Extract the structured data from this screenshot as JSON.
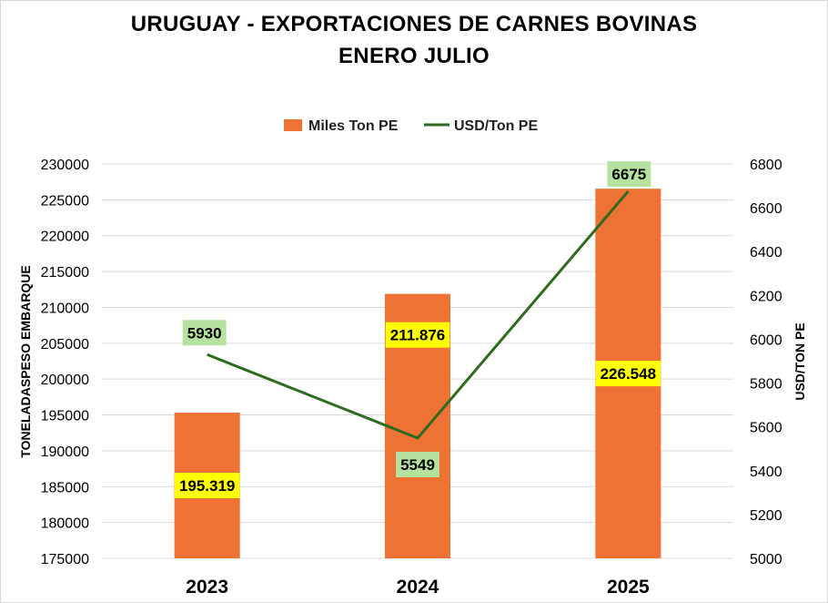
{
  "title_line1": "URUGUAY - EXPORTACIONES DE CARNES BOVINAS",
  "title_line2": "ENERO JULIO",
  "colors": {
    "bar": "#ED7233",
    "line": "#2E6B1F",
    "bar_label_bg": "#FFFF00",
    "line_label_bg": "#B5E29E",
    "grid": "#D9D9D9"
  },
  "chart_data": {
    "type": "bar",
    "title": "URUGUAY - EXPORTACIONES DE CARNES BOVINAS ENERO JULIO",
    "categories": [
      "2023",
      "2024",
      "2025"
    ],
    "series": [
      {
        "name": "Miles Ton PE",
        "type": "bar",
        "axis": "left",
        "values": [
          195319,
          211876,
          226548
        ],
        "labels": [
          "195.319",
          "211.876",
          "226.548"
        ]
      },
      {
        "name": "USD/Ton PE",
        "type": "line",
        "axis": "right",
        "values": [
          5930,
          5549,
          6675
        ],
        "labels": [
          "5930",
          "5549",
          "6675"
        ]
      }
    ],
    "ylabel": "TONELADASPESO EMBARQUE",
    "y2label": "USD/TON PE",
    "ylim": [
      175000,
      230000
    ],
    "y2lim": [
      5000,
      6800
    ],
    "yticks": [
      "175000",
      "180000",
      "185000",
      "190000",
      "195000",
      "200000",
      "205000",
      "210000",
      "215000",
      "220000",
      "225000",
      "230000"
    ],
    "y2ticks": [
      "5000",
      "5200",
      "5400",
      "5600",
      "5800",
      "6000",
      "6200",
      "6400",
      "6600",
      "6800"
    ],
    "grid": true,
    "legend_position": "top-center"
  }
}
